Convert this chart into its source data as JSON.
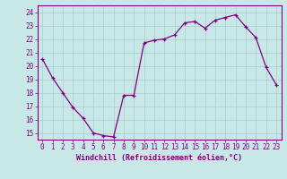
{
  "x": [
    0,
    1,
    2,
    3,
    4,
    5,
    6,
    7,
    8,
    9,
    10,
    11,
    12,
    13,
    14,
    15,
    16,
    17,
    18,
    19,
    20,
    21,
    22,
    23
  ],
  "y": [
    20.5,
    19.1,
    18.0,
    16.9,
    16.1,
    15.0,
    14.8,
    14.7,
    17.8,
    17.8,
    21.7,
    21.9,
    22.0,
    22.3,
    23.2,
    23.3,
    22.8,
    23.4,
    23.6,
    23.8,
    22.9,
    22.1,
    19.9,
    18.6
  ],
  "line_color": "#800080",
  "marker": "+",
  "xlabel": "Windchill (Refroidissement éolien,°C)",
  "ylim": [
    14.5,
    24.5
  ],
  "xlim": [
    -0.5,
    23.5
  ],
  "yticks": [
    15,
    16,
    17,
    18,
    19,
    20,
    21,
    22,
    23,
    24
  ],
  "xticks": [
    0,
    1,
    2,
    3,
    4,
    5,
    6,
    7,
    8,
    9,
    10,
    11,
    12,
    13,
    14,
    15,
    16,
    17,
    18,
    19,
    20,
    21,
    22,
    23
  ],
  "bg_color": "#c8e8e8",
  "grid_color": "#aacccc",
  "tick_color": "#800080",
  "label_color": "#800080",
  "tick_fontsize": 5.5,
  "xlabel_fontsize": 6.0
}
